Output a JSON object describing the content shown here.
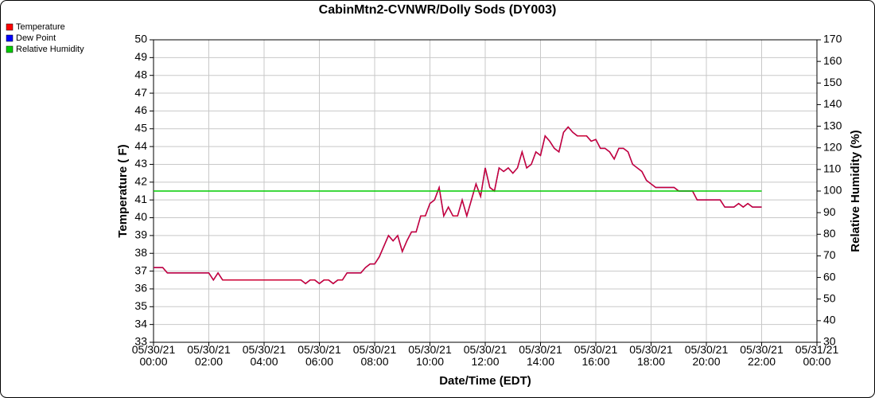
{
  "chart_data": {
    "type": "line",
    "title": "CabinMtn2-CVNWR/Dolly Sods (DY003)",
    "xlabel": "Date/Time (EDT)",
    "ylabel": "Temperature ( F)",
    "y2label": "Relative Humidity (%)",
    "x": [
      "05/30/21 00:00",
      "05/30/21 00:10",
      "05/30/21 00:20",
      "05/30/21 00:30",
      "05/30/21 00:40",
      "05/30/21 00:50",
      "05/30/21 01:00",
      "05/30/21 01:10",
      "05/30/21 01:20",
      "05/30/21 01:30",
      "05/30/21 01:40",
      "05/30/21 01:50",
      "05/30/21 02:00",
      "05/30/21 02:10",
      "05/30/21 02:20",
      "05/30/21 02:30",
      "05/30/21 02:40",
      "05/30/21 02:50",
      "05/30/21 03:00",
      "05/30/21 03:10",
      "05/30/21 03:20",
      "05/30/21 03:30",
      "05/30/21 03:40",
      "05/30/21 03:50",
      "05/30/21 04:00",
      "05/30/21 04:10",
      "05/30/21 04:20",
      "05/30/21 04:30",
      "05/30/21 04:40",
      "05/30/21 04:50",
      "05/30/21 05:00",
      "05/30/21 05:10",
      "05/30/21 05:20",
      "05/30/21 05:30",
      "05/30/21 05:40",
      "05/30/21 05:50",
      "05/30/21 06:00",
      "05/30/21 06:10",
      "05/30/21 06:20",
      "05/30/21 06:30",
      "05/30/21 06:40",
      "05/30/21 06:50",
      "05/30/21 07:00",
      "05/30/21 07:10",
      "05/30/21 07:20",
      "05/30/21 07:30",
      "05/30/21 07:40",
      "05/30/21 07:50",
      "05/30/21 08:00",
      "05/30/21 08:10",
      "05/30/21 08:20",
      "05/30/21 08:30",
      "05/30/21 08:40",
      "05/30/21 08:50",
      "05/30/21 09:00",
      "05/30/21 09:10",
      "05/30/21 09:20",
      "05/30/21 09:30",
      "05/30/21 09:40",
      "05/30/21 09:50",
      "05/30/21 10:00",
      "05/30/21 10:10",
      "05/30/21 10:20",
      "05/30/21 10:30",
      "05/30/21 10:40",
      "05/30/21 10:50",
      "05/30/21 11:00",
      "05/30/21 11:10",
      "05/30/21 11:20",
      "05/30/21 11:30",
      "05/30/21 11:40",
      "05/30/21 11:50",
      "05/30/21 12:00",
      "05/30/21 12:10",
      "05/30/21 12:20",
      "05/30/21 12:30",
      "05/30/21 12:40",
      "05/30/21 12:50",
      "05/30/21 13:00",
      "05/30/21 13:10",
      "05/30/21 13:20",
      "05/30/21 13:30",
      "05/30/21 13:40",
      "05/30/21 13:50",
      "05/30/21 14:00",
      "05/30/21 14:10",
      "05/30/21 14:20",
      "05/30/21 14:30",
      "05/30/21 14:40",
      "05/30/21 14:50",
      "05/30/21 15:00",
      "05/30/21 15:10",
      "05/30/21 15:20",
      "05/30/21 15:30",
      "05/30/21 15:40",
      "05/30/21 15:50",
      "05/30/21 16:00",
      "05/30/21 16:10",
      "05/30/21 16:20",
      "05/30/21 16:30",
      "05/30/21 16:40",
      "05/30/21 16:50",
      "05/30/21 17:00",
      "05/30/21 17:10",
      "05/30/21 17:20",
      "05/30/21 17:30",
      "05/30/21 17:40",
      "05/30/21 17:50",
      "05/30/21 18:00",
      "05/30/21 18:10",
      "05/30/21 18:20",
      "05/30/21 18:30",
      "05/30/21 18:40",
      "05/30/21 18:50",
      "05/30/21 19:00",
      "05/30/21 19:10",
      "05/30/21 19:20",
      "05/30/21 19:30",
      "05/30/21 19:40",
      "05/30/21 19:50",
      "05/30/21 20:00",
      "05/30/21 20:10",
      "05/30/21 20:20",
      "05/30/21 20:30",
      "05/30/21 20:40",
      "05/30/21 20:50",
      "05/30/21 21:00",
      "05/30/21 21:10",
      "05/30/21 21:20",
      "05/30/21 21:30",
      "05/30/21 21:40",
      "05/30/21 21:50",
      "05/30/21 22:00"
    ],
    "series": [
      {
        "name": "Temperature",
        "color": "#ff0000",
        "values": [
          37.2,
          37.2,
          37.2,
          36.9,
          36.9,
          36.9,
          36.9,
          36.9,
          36.9,
          36.9,
          36.9,
          36.9,
          36.9,
          36.5,
          36.9,
          36.5,
          36.5,
          36.5,
          36.5,
          36.5,
          36.5,
          36.5,
          36.5,
          36.5,
          36.5,
          36.5,
          36.5,
          36.5,
          36.5,
          36.5,
          36.5,
          36.5,
          36.5,
          36.3,
          36.5,
          36.5,
          36.3,
          36.5,
          36.5,
          36.3,
          36.5,
          36.5,
          36.9,
          36.9,
          36.9,
          36.9,
          37.2,
          37.4,
          37.4,
          37.8,
          38.4,
          39.0,
          38.7,
          39.0,
          38.1,
          38.7,
          39.2,
          39.2,
          40.1,
          40.1,
          40.8,
          41.0,
          41.7,
          40.1,
          40.6,
          40.1,
          40.1,
          41.0,
          40.1,
          41.0,
          41.9,
          41.2,
          42.8,
          41.7,
          41.5,
          42.8,
          42.6,
          42.8,
          42.5,
          42.8,
          43.7,
          42.8,
          43.0,
          43.7,
          43.5,
          44.6,
          44.3,
          43.9,
          43.7,
          44.8,
          45.1,
          44.8,
          44.6,
          44.6,
          44.6,
          44.3,
          44.4,
          43.9,
          43.9,
          43.7,
          43.3,
          43.9,
          43.9,
          43.7,
          43.0,
          42.8,
          42.6,
          42.1,
          41.9,
          41.7,
          41.7,
          41.7,
          41.7,
          41.7,
          41.5,
          41.5,
          41.5,
          41.5,
          41.0,
          41.0,
          41.0,
          41.0,
          41.0,
          41.0,
          40.6,
          40.6,
          40.6,
          40.8,
          40.6,
          40.8,
          40.6,
          40.6,
          40.6
        ]
      },
      {
        "name": "Dew Point",
        "color": "#0000ff",
        "values": [
          37.2,
          37.2,
          37.2,
          36.9,
          36.9,
          36.9,
          36.9,
          36.9,
          36.9,
          36.9,
          36.9,
          36.9,
          36.9,
          36.5,
          36.9,
          36.5,
          36.5,
          36.5,
          36.5,
          36.5,
          36.5,
          36.5,
          36.5,
          36.5,
          36.5,
          36.5,
          36.5,
          36.5,
          36.5,
          36.5,
          36.5,
          36.5,
          36.5,
          36.3,
          36.5,
          36.5,
          36.3,
          36.5,
          36.5,
          36.3,
          36.5,
          36.5,
          36.9,
          36.9,
          36.9,
          36.9,
          37.2,
          37.4,
          37.4,
          37.8,
          38.4,
          39.0,
          38.7,
          39.0,
          38.1,
          38.7,
          39.2,
          39.2,
          40.1,
          40.1,
          40.8,
          41.0,
          41.7,
          40.1,
          40.6,
          40.1,
          40.1,
          41.0,
          40.1,
          41.0,
          41.9,
          41.2,
          42.8,
          41.7,
          41.5,
          42.8,
          42.6,
          42.8,
          42.5,
          42.8,
          43.7,
          42.8,
          43.0,
          43.7,
          43.5,
          44.6,
          44.3,
          43.9,
          43.7,
          44.8,
          45.1,
          44.8,
          44.6,
          44.6,
          44.6,
          44.3,
          44.4,
          43.9,
          43.9,
          43.7,
          43.3,
          43.9,
          43.9,
          43.7,
          43.0,
          42.8,
          42.6,
          42.1,
          41.9,
          41.7,
          41.7,
          41.7,
          41.7,
          41.7,
          41.5,
          41.5,
          41.5,
          41.5,
          41.0,
          41.0,
          41.0,
          41.0,
          41.0,
          41.0,
          40.6,
          40.6,
          40.6,
          40.8,
          40.6,
          40.8,
          40.6,
          40.6,
          40.6
        ]
      },
      {
        "name": "Relative Humidity",
        "color": "#00cc00",
        "axis": "y2",
        "values": [
          100,
          100,
          100,
          100,
          100,
          100,
          100,
          100,
          100,
          100,
          100,
          100,
          100,
          100,
          100,
          100,
          100,
          100,
          100,
          100,
          100,
          100,
          100,
          100,
          100,
          100,
          100,
          100,
          100,
          100,
          100,
          100,
          100,
          100,
          100,
          100,
          100,
          100,
          100,
          100,
          100,
          100,
          100,
          100,
          100,
          100,
          100,
          100,
          100,
          100,
          100,
          100,
          100,
          100,
          100,
          100,
          100,
          100,
          100,
          100,
          100,
          100,
          100,
          100,
          100,
          100,
          100,
          100,
          100,
          100,
          100,
          100,
          100,
          100,
          100,
          100,
          100,
          100,
          100,
          100,
          100,
          100,
          100,
          100,
          100,
          100,
          100,
          100,
          100,
          100,
          100,
          100,
          100,
          100,
          100,
          100,
          100,
          100,
          100,
          100,
          100,
          100,
          100,
          100,
          100,
          100,
          100,
          100,
          100,
          100,
          100,
          100,
          100,
          100,
          100,
          100,
          100,
          100,
          100,
          100,
          100,
          100,
          100,
          100,
          100,
          100,
          100,
          100,
          100,
          100,
          100,
          100,
          100
        ]
      }
    ],
    "xlim": [
      "05/30/21 00:00",
      "05/31/21 00:00"
    ],
    "xticks": [
      "05/30/21 00:00",
      "05/30/21 02:00",
      "05/30/21 04:00",
      "05/30/21 06:00",
      "05/30/21 08:00",
      "05/30/21 10:00",
      "05/30/21 12:00",
      "05/30/21 14:00",
      "05/30/21 16:00",
      "05/30/21 18:00",
      "05/30/21 20:00",
      "05/30/21 22:00",
      "05/31/21 00:00"
    ],
    "ylim": [
      33,
      50
    ],
    "yticks": [
      33,
      34,
      35,
      36,
      37,
      38,
      39,
      40,
      41,
      42,
      43,
      44,
      45,
      46,
      47,
      48,
      49,
      50
    ],
    "y2lim": [
      30,
      170
    ],
    "y2ticks": [
      30,
      40,
      50,
      60,
      70,
      80,
      90,
      100,
      110,
      120,
      130,
      140,
      150,
      160,
      170
    ],
    "grid": true,
    "legend": "top-left"
  }
}
